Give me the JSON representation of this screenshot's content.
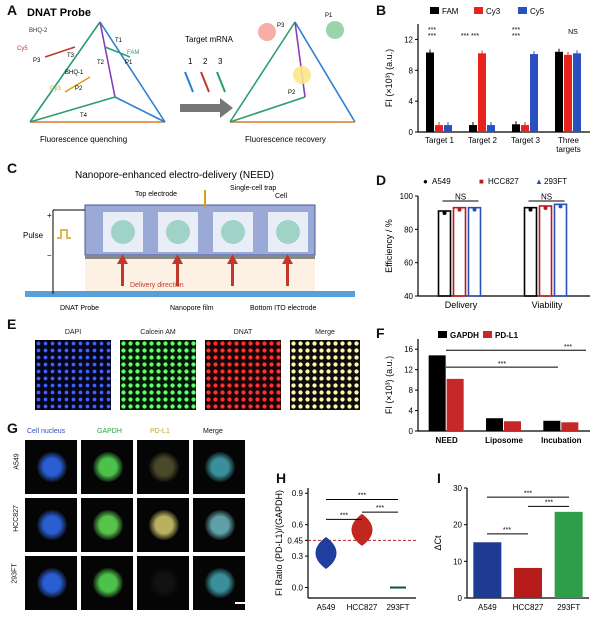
{
  "panels": {
    "A": {
      "label": "A",
      "title": "DNAT Probe",
      "target": "Target mRNA",
      "nums": [
        "1",
        "2",
        "3"
      ],
      "left_caption": "Fluorescence quenching",
      "right_caption": "Fluorescence recovery",
      "tags": [
        "BHQ-2",
        "Cy5",
        "P3",
        "T3",
        "T2",
        "T1",
        "FAM",
        "BHQ-1",
        "P1",
        "Cy3",
        "P2",
        "T4",
        "BHQ-3"
      ],
      "right_tags": [
        "P3",
        "P1",
        "P2",
        "5'",
        "3'",
        "5'",
        "3'",
        "5'",
        "3'"
      ]
    },
    "B": {
      "label": "B"
    },
    "C": {
      "label": "C",
      "title": "Nanopore-enhanced electro-delivery (NEED)",
      "top_electrode": "Top electrode",
      "trap": "Single-cell trap",
      "cell": "Cell",
      "pulse": "Pulse",
      "plus": "+",
      "minus": "−",
      "delivery": "Delivery direction",
      "probe": "DNAT Probe",
      "film": "Nanopore film",
      "ito": "Bottom ITO electrode"
    },
    "D": {
      "label": "D"
    },
    "E": {
      "label": "E",
      "images": [
        "DAPI",
        "Calcein AM",
        "DNAT",
        "Merge"
      ]
    },
    "F": {
      "label": "F"
    },
    "G": {
      "label": "G",
      "columns": [
        "Cell nucleus",
        "GAPDH",
        "PD-L1",
        "Merge"
      ],
      "rows": [
        "A549",
        "HCC827",
        "293FT"
      ]
    },
    "H": {
      "label": "H"
    },
    "I": {
      "label": "I"
    }
  },
  "colors": {
    "fam": "#000000",
    "cy3": "#e8231d",
    "cy5": "#2a4fbf",
    "bar_blue": "#1f3a93",
    "bar_red": "#b71c1c",
    "bar_green": "#2e9e4a",
    "gapdh": "#000000",
    "pdl1": "#c62828",
    "violin_blue": "#1f3f9f",
    "violin_red": "#c0271f",
    "dash": "#c0271f"
  },
  "chart_data": [
    {
      "id": "B",
      "type": "bar",
      "categories": [
        "Target 1",
        "Target 2",
        "Target 3",
        "Three targets"
      ],
      "series": [
        {
          "name": "FAM",
          "values": [
            10.3,
            0.9,
            1.0,
            10.4
          ]
        },
        {
          "name": "Cy3",
          "values": [
            0.9,
            10.2,
            0.9,
            10.0
          ]
        },
        {
          "name": "Cy5",
          "values": [
            0.9,
            0.9,
            10.1,
            10.2
          ]
        }
      ],
      "ylabel": "FI (×10³) (a.u.)",
      "ylim": [
        0,
        14
      ],
      "yticks": [
        "0",
        "4",
        "8",
        "12"
      ],
      "annotations": [
        "***",
        "***",
        "***",
        "*** ***",
        "***",
        "***",
        "NS"
      ]
    },
    {
      "id": "D",
      "type": "bar",
      "categories": [
        "Delivery",
        "Viability"
      ],
      "series": [
        {
          "name": "A549",
          "values": [
            91,
            93
          ]
        },
        {
          "name": "HCC827",
          "values": [
            93,
            94
          ]
        },
        {
          "name": "293FT",
          "values": [
            93,
            95
          ]
        }
      ],
      "ylabel": "Efficiency / %",
      "ylim": [
        40,
        100
      ],
      "yticks": [
        "40",
        "60",
        "80",
        "100"
      ],
      "annotations": [
        "NS",
        "NS"
      ]
    },
    {
      "id": "F",
      "type": "bar",
      "categories": [
        "NEED",
        "Liposome",
        "Incubation"
      ],
      "series": [
        {
          "name": "GAPDH",
          "values": [
            14.8,
            2.5,
            2.0
          ]
        },
        {
          "name": "PD-L1",
          "values": [
            10.2,
            1.9,
            1.7
          ]
        }
      ],
      "ylabel": "FI (×10³) (a.u.)",
      "ylim": [
        0,
        18
      ],
      "yticks": [
        "0",
        "4",
        "8",
        "12",
        "16"
      ],
      "annotations": [
        "***",
        "***"
      ]
    },
    {
      "id": "H",
      "type": "scatter",
      "categories": [
        "A549",
        "HCC827",
        "293FT"
      ],
      "values": [
        0.33,
        0.55,
        0.0
      ],
      "ylabel": "FI Ratio (PD-L1)/(GAPDH)",
      "ylim": [
        -0.1,
        0.95
      ],
      "yticks": [
        "0.0",
        "0.3",
        "0.45",
        "0.6",
        "0.9"
      ],
      "threshold": 0.45,
      "annotations": [
        "***",
        "***",
        "***"
      ]
    },
    {
      "id": "I",
      "type": "bar",
      "categories": [
        "A549",
        "HCC827",
        "293FT"
      ],
      "values": [
        15.2,
        8.2,
        23.5
      ],
      "ylabel": "ΔCt",
      "ylim": [
        0,
        30
      ],
      "yticks": [
        "0",
        "10",
        "20",
        "30"
      ],
      "annotations": [
        "***",
        "***",
        "***"
      ]
    }
  ]
}
